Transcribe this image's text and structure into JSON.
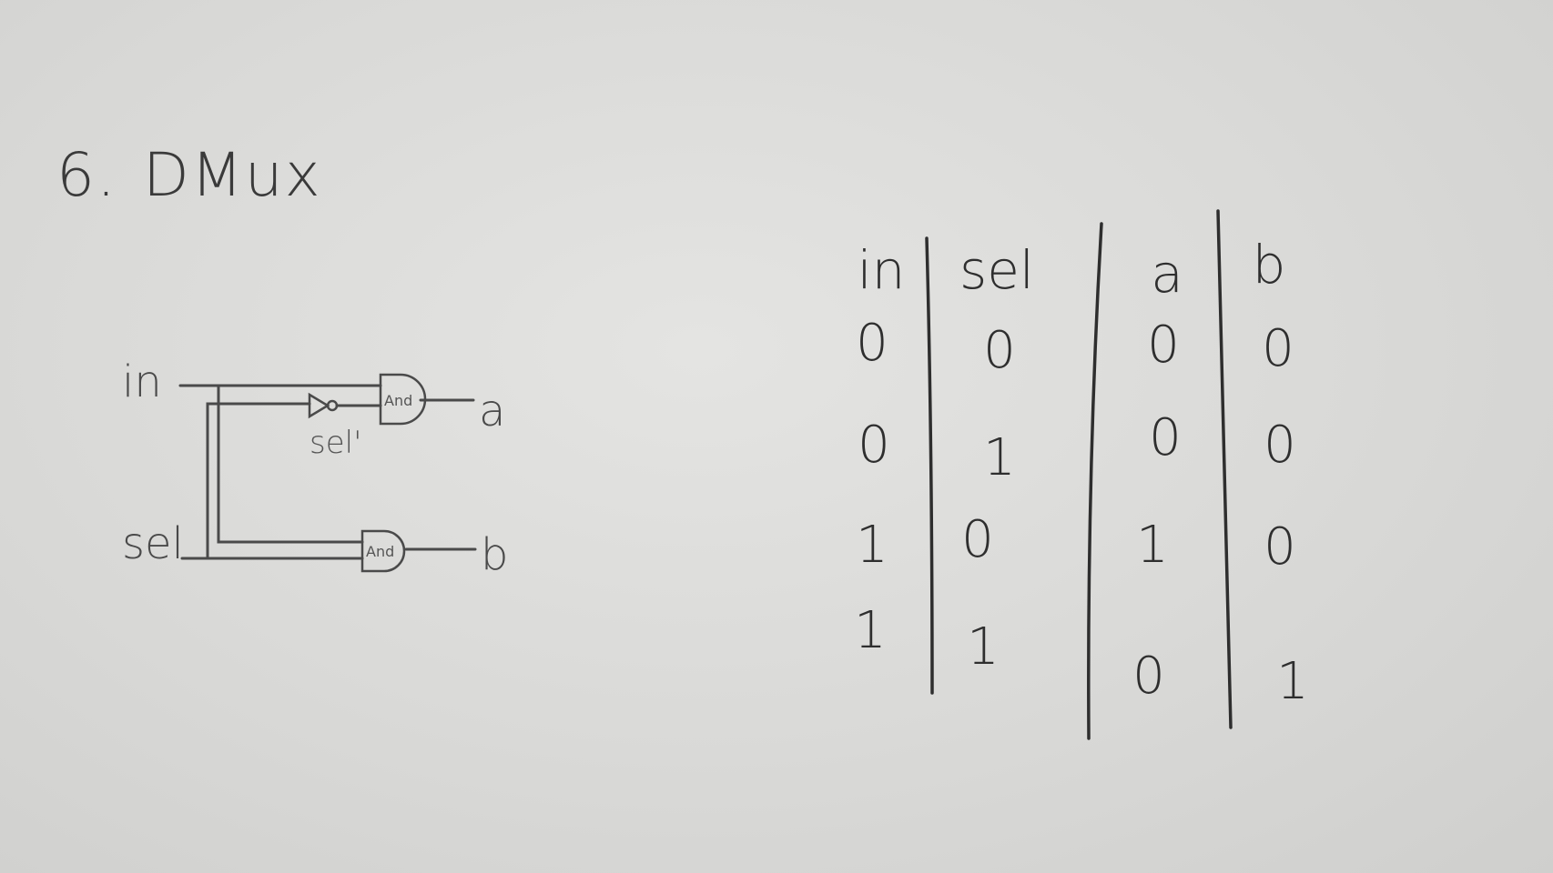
{
  "title": {
    "number": "6.",
    "name": "DMux"
  },
  "circuit": {
    "input_in": "in",
    "input_sel": "sel",
    "not_output": "sel'",
    "gate_top": "And",
    "gate_bottom": "And",
    "output_a": "a",
    "output_b": "b"
  },
  "truth_table": {
    "headers": [
      "in",
      "sel",
      "a",
      "b"
    ],
    "rows": [
      [
        "0",
        "0",
        "0",
        "0"
      ],
      [
        "0",
        "1",
        "0",
        "0"
      ],
      [
        "1",
        "0",
        "1",
        "0"
      ],
      [
        "1",
        "1",
        "0",
        "1"
      ]
    ]
  },
  "colors": {
    "paper": "#dcdcda",
    "ink": "#3a3a3a"
  }
}
